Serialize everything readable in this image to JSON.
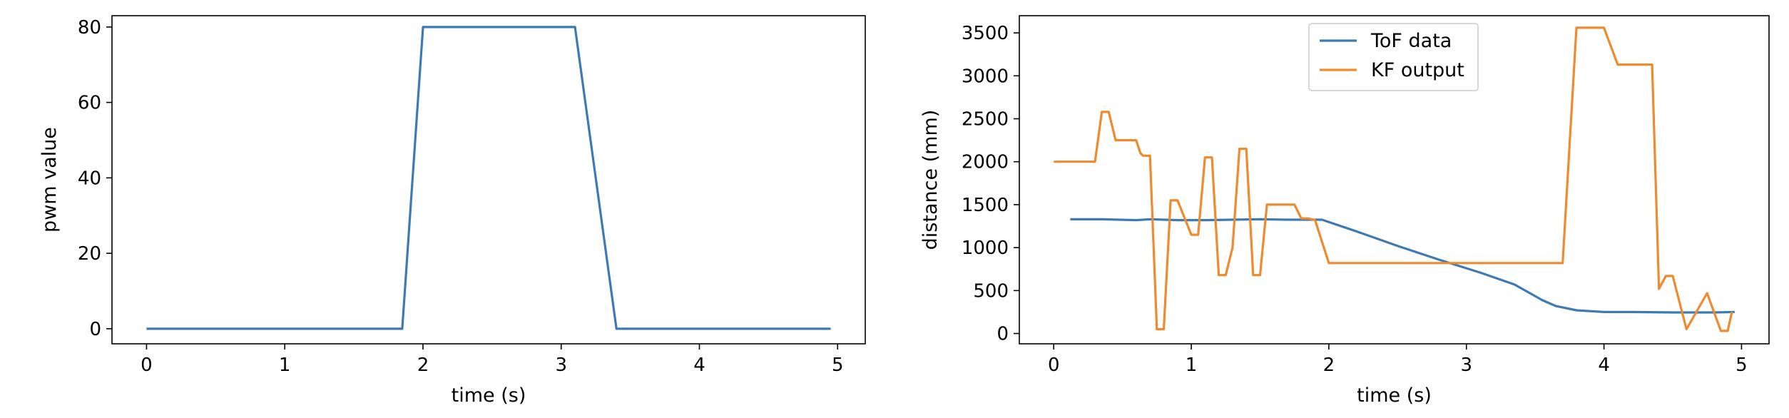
{
  "chart_data": [
    {
      "type": "line",
      "xlabel": "time (s)",
      "ylabel": "pwm value",
      "xlim": [
        -0.25,
        5.2
      ],
      "ylim": [
        -4,
        83
      ],
      "xticks": [
        0,
        1,
        2,
        3,
        4,
        5
      ],
      "yticks": [
        0,
        20,
        40,
        60,
        80
      ],
      "grid": false,
      "series": [
        {
          "color": "#3d7ab5",
          "x": [
            0,
            1.85,
            2.0,
            3.1,
            3.4,
            4.95
          ],
          "y": [
            0,
            0,
            80,
            80,
            0,
            0
          ]
        }
      ]
    },
    {
      "type": "line",
      "xlabel": "time (s)",
      "ylabel": "distance (mm)",
      "xlim": [
        -0.25,
        5.2
      ],
      "ylim": [
        -120,
        3700
      ],
      "xticks": [
        0,
        1,
        2,
        3,
        4,
        5
      ],
      "yticks": [
        0,
        500,
        1000,
        1500,
        2000,
        2500,
        3000,
        3500
      ],
      "grid": false,
      "legend": "upper-center",
      "series": [
        {
          "name": "ToF data",
          "color": "#3d7ab5",
          "x": [
            0.12,
            0.35,
            0.6,
            0.7,
            0.9,
            1.1,
            1.3,
            1.5,
            1.7,
            1.95,
            2.2,
            2.5,
            2.8,
            3.1,
            3.35,
            3.55,
            3.65,
            3.8,
            4.0,
            4.2,
            4.5,
            4.8,
            4.95
          ],
          "y": [
            1330,
            1330,
            1320,
            1330,
            1320,
            1320,
            1325,
            1330,
            1325,
            1325,
            1190,
            1020,
            860,
            710,
            570,
            390,
            320,
            270,
            250,
            250,
            245,
            245,
            250
          ]
        },
        {
          "name": "KF output",
          "color": "#ef8a2e",
          "x": [
            0,
            0.3,
            0.35,
            0.4,
            0.45,
            0.6,
            0.63,
            0.65,
            0.7,
            0.75,
            0.8,
            0.85,
            0.9,
            1.0,
            1.05,
            1.1,
            1.15,
            1.2,
            1.25,
            1.3,
            1.35,
            1.4,
            1.45,
            1.5,
            1.55,
            1.6,
            1.65,
            1.75,
            1.8,
            1.85,
            1.9,
            2.0,
            2.5,
            3.0,
            3.5,
            3.7,
            3.8,
            3.9,
            4.0,
            4.1,
            4.2,
            4.35,
            4.4,
            4.45,
            4.5,
            4.6,
            4.75,
            4.85,
            4.9,
            4.93
          ],
          "y": [
            2000,
            2000,
            2580,
            2580,
            2250,
            2250,
            2100,
            2070,
            2070,
            50,
            50,
            1550,
            1550,
            1150,
            1150,
            2050,
            2050,
            680,
            680,
            1000,
            2150,
            2150,
            680,
            680,
            1500,
            1500,
            1500,
            1500,
            1340,
            1340,
            1320,
            820,
            820,
            820,
            820,
            820,
            3560,
            3560,
            3560,
            3130,
            3130,
            3130,
            520,
            670,
            670,
            50,
            470,
            30,
            30,
            250
          ]
        }
      ]
    }
  ]
}
